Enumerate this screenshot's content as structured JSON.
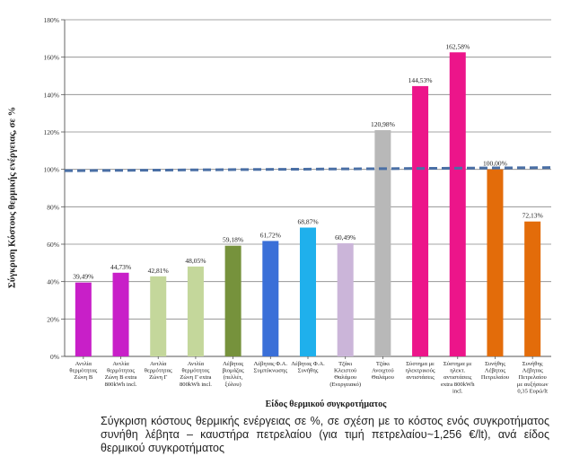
{
  "chart_data": {
    "type": "bar",
    "xlabel": "Είδος θερμικού συγκροτήματος",
    "ylabel": "Σύγκριση Κόστους θερμικής ενέργειας, σε %",
    "ylim": [
      0,
      180
    ],
    "yticks": [
      "0%",
      "20%",
      "40%",
      "60%",
      "80%",
      "100%",
      "120%",
      "140%",
      "160%",
      "180%"
    ],
    "reference_line": 100,
    "reference_color": "#4a6fa5",
    "grid": true,
    "categories": [
      [
        "Αντλία",
        "θερμότητας",
        "Ζώνη Β"
      ],
      [
        "Αντλία",
        "θερμότητας",
        "Ζώνη Β extra",
        "800kWh incl."
      ],
      [
        "Αντλία",
        "θερμότητας",
        "Ζώνη Γ"
      ],
      [
        "Αντλία",
        "θερμότητας",
        "Ζώνη Γ extra",
        "800kWh incl."
      ],
      [
        "Λέβητας",
        "βιομάζας",
        "(πελλέτ,",
        "ξύλου)"
      ],
      [
        "Λέβητας Φ.Α.",
        "Συμπύκνωσης"
      ],
      [
        "Λέβητας Φ.Α.",
        "Συνήθης"
      ],
      [
        "Τζάκι",
        "Κλειστού",
        "Θαλάμου",
        "(Ενεργειακό)"
      ],
      [
        "Τζάκι",
        "Ανοιχτού",
        "Θαλάμου"
      ],
      [
        "Σύστημα με",
        "ηλεκτρικούς",
        "αντιστάσεις"
      ],
      [
        "Σύστημα με",
        "ηλεκτ.",
        "αντιστάσεις",
        "extra 800kWh",
        "incl."
      ],
      [
        "Συνήθης",
        "Λέβητας",
        "Πετρελαίου"
      ],
      [
        "Συνήθης",
        "Λέβητας",
        "Πετρελαίου",
        "με αυξήσεων",
        "0,35 Ευρώ/lt"
      ]
    ],
    "values": [
      39.49,
      44.73,
      42.81,
      48.05,
      59.18,
      61.72,
      68.87,
      60.49,
      120.98,
      144.53,
      162.58,
      100.0,
      72.13
    ],
    "value_labels": [
      "39,49%",
      "44,73%",
      "42,81%",
      "48,05%",
      "59,18%",
      "61,72%",
      "68,87%",
      "60,49%",
      "120,98%",
      "144,53%",
      "162,58%",
      "100,00%",
      "72,13%"
    ],
    "colors": [
      "#c81fc8",
      "#c81fc8",
      "#c4d79b",
      "#c4d79b",
      "#76923c",
      "#3a6fd8",
      "#1fb0ec",
      "#cbb5d9",
      "#b8b8b8",
      "#ec158a",
      "#ec158a",
      "#e36c0a",
      "#e36c0a"
    ]
  },
  "caption": "Σύγκριση κόστους θερμικής ενέργειας σε %, σε σχέση με το κόστος ενός συγκροτήματος συνήθη λέβητα – καυστήρα πετρελαίου (για τιμή πετρελαίου~1,256 €/lt), ανά είδος θερμικού συγκροτήματος"
}
